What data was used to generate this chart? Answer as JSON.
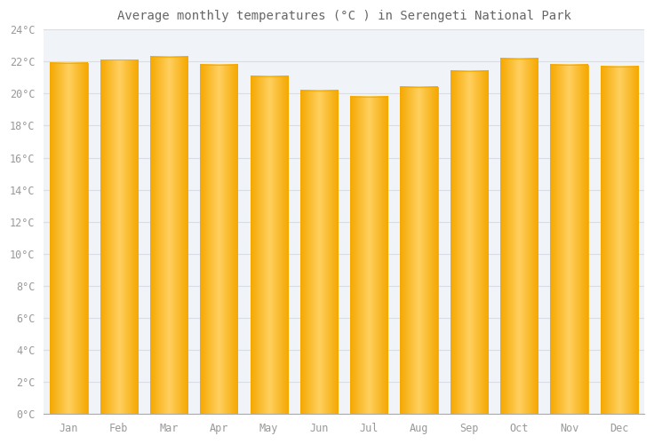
{
  "title": "Average monthly temperatures (°C ) in Serengeti National Park",
  "months": [
    "Jan",
    "Feb",
    "Mar",
    "Apr",
    "May",
    "Jun",
    "Jul",
    "Aug",
    "Sep",
    "Oct",
    "Nov",
    "Dec"
  ],
  "temperatures": [
    21.9,
    22.1,
    22.3,
    21.8,
    21.1,
    20.2,
    19.8,
    20.4,
    21.4,
    22.2,
    21.8,
    21.7
  ],
  "bar_color_left": "#F5A800",
  "bar_color_center": "#FFD060",
  "bar_color_right": "#F5A800",
  "ylim": [
    0,
    24
  ],
  "yticks": [
    0,
    2,
    4,
    6,
    8,
    10,
    12,
    14,
    16,
    18,
    20,
    22,
    24
  ],
  "ytick_labels": [
    "0°C",
    "2°C",
    "4°C",
    "6°C",
    "8°C",
    "10°C",
    "12°C",
    "14°C",
    "16°C",
    "18°C",
    "20°C",
    "22°C",
    "24°C"
  ],
  "bg_color": "#ffffff",
  "plot_bg_color": "#f0f4f8",
  "grid_color": "#d8dde6",
  "title_fontsize": 10,
  "tick_fontsize": 8.5,
  "bar_width": 0.75
}
